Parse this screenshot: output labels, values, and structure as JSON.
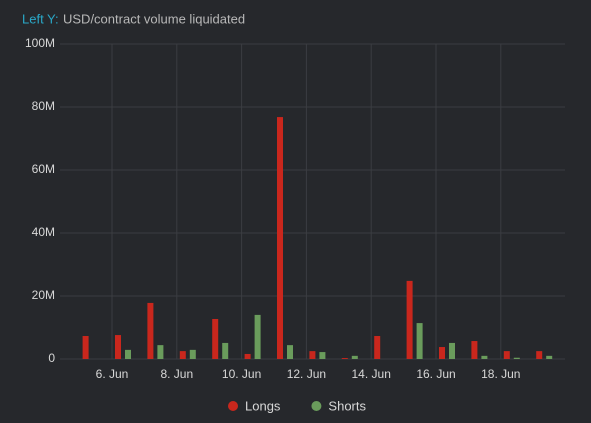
{
  "chart_data": {
    "type": "bar",
    "title_prefix": "Left Y:",
    "title": "USD/contract volume liquidated",
    "categories": [
      null,
      "6. Jun",
      null,
      "8. Jun",
      null,
      "10. Jun",
      null,
      "12. Jun",
      null,
      "14. Jun",
      null,
      "16. Jun",
      null,
      "18. Jun",
      null
    ],
    "series": [
      {
        "name": "Longs",
        "color": "#c9271d",
        "values": [
          7300000,
          7600000,
          17800000,
          2500000,
          12700000,
          1600000,
          76800000,
          2500000,
          300000,
          7300000,
          24800000,
          3800000,
          5700000,
          2500000,
          2500000
        ]
      },
      {
        "name": "Shorts",
        "color": "#6a9c5c",
        "values": [
          0,
          2900000,
          4400000,
          2900000,
          5100000,
          14000000,
          4400000,
          2200000,
          1000000,
          0,
          11400000,
          5100000,
          1000000,
          400000,
          1000000
        ]
      }
    ],
    "ylim": [
      0,
      100000000
    ],
    "yticks": [
      {
        "value": 0,
        "label": "0"
      },
      {
        "value": 20000000,
        "label": "20M"
      },
      {
        "value": 40000000,
        "label": "40M"
      },
      {
        "value": 60000000,
        "label": "60M"
      },
      {
        "value": 80000000,
        "label": "80M"
      },
      {
        "value": 100000000,
        "label": "100M"
      }
    ],
    "grid": true
  }
}
